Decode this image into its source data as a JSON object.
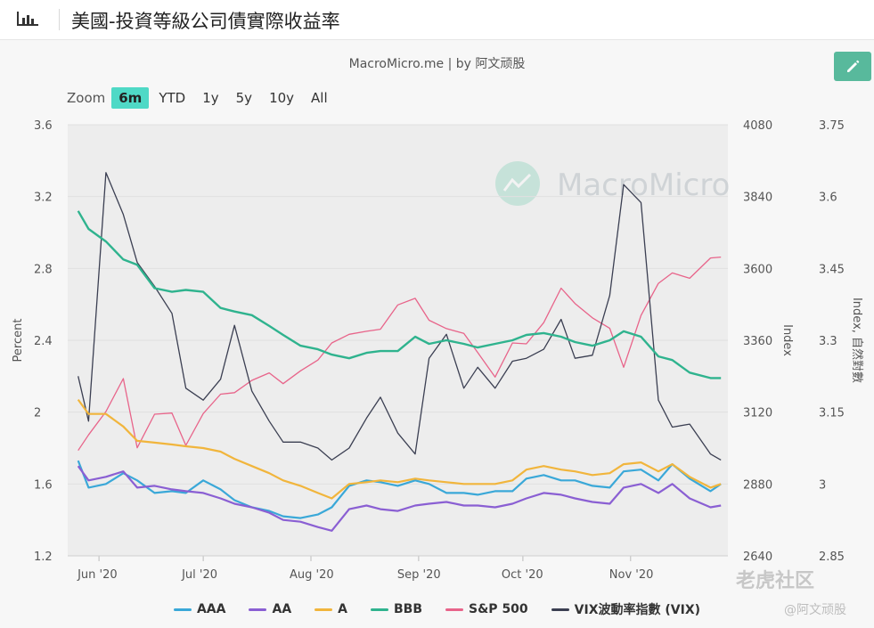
{
  "header": {
    "title": "美國-投資等級公司債實際收益率"
  },
  "credit": "MacroMicro.me | by 阿文顽股",
  "watermark": "MacroMicro",
  "corner_watermark": "老虎社区",
  "corner_watermark2": "@阿文顽股",
  "zoom": {
    "label": "Zoom",
    "options": [
      "6m",
      "YTD",
      "1y",
      "5y",
      "10y",
      "All"
    ],
    "active": "6m"
  },
  "colors": {
    "AAA": "#3aa8d8",
    "AA": "#8a5fd3",
    "A": "#f1b53c",
    "BBB": "#2fb38e",
    "SP500": "#e8648a",
    "VIX": "#3b3f52",
    "plot_bg": "#ededed",
    "edit_button": "#58b99c"
  },
  "chart_data": {
    "type": "line",
    "dates": [
      "2020-05-26",
      "2020-05-29",
      "2020-06-03",
      "2020-06-08",
      "2020-06-12",
      "2020-06-17",
      "2020-06-22",
      "2020-06-26",
      "2020-07-01",
      "2020-07-06",
      "2020-07-10",
      "2020-07-15",
      "2020-07-20",
      "2020-07-24",
      "2020-07-29",
      "2020-08-03",
      "2020-08-07",
      "2020-08-12",
      "2020-08-17",
      "2020-08-21",
      "2020-08-26",
      "2020-08-31",
      "2020-09-04",
      "2020-09-09",
      "2020-09-14",
      "2020-09-18",
      "2020-09-23",
      "2020-09-28",
      "2020-10-02",
      "2020-10-07",
      "2020-10-12",
      "2020-10-16",
      "2020-10-21",
      "2020-10-26",
      "2020-10-30",
      "2020-11-04",
      "2020-11-09",
      "2020-11-13",
      "2020-11-18",
      "2020-11-24",
      "2020-11-27"
    ],
    "x_tick_labels": [
      "Jun '20",
      "Jul '20",
      "Aug '20",
      "Sep '20",
      "Oct '20",
      "Nov '20"
    ],
    "x_tick_dates": [
      "2020-06-01",
      "2020-07-01",
      "2020-08-01",
      "2020-09-01",
      "2020-10-01",
      "2020-11-01"
    ],
    "y_left": {
      "label": "Percent",
      "range": [
        1.2,
        3.6
      ],
      "ticks": [
        "1.2",
        "1.6",
        "2",
        "2.4",
        "2.8",
        "3.2",
        "3.6"
      ]
    },
    "y_right_1": {
      "label": "Index",
      "range": [
        2640,
        4080
      ],
      "ticks": [
        "2640",
        "2880",
        "3120",
        "3360",
        "3600",
        "3840",
        "4080"
      ]
    },
    "y_right_2": {
      "label": "Index, 自然對數",
      "range": [
        2.85,
        3.75
      ],
      "ticks": [
        "2.85",
        "3",
        "3.15",
        "3.3",
        "3.45",
        "3.6",
        "3.75"
      ]
    },
    "series": [
      {
        "name": "AAA",
        "axis": "left",
        "values": [
          1.73,
          1.58,
          1.6,
          1.66,
          1.62,
          1.55,
          1.56,
          1.55,
          1.62,
          1.57,
          1.51,
          1.47,
          1.45,
          1.42,
          1.41,
          1.43,
          1.47,
          1.59,
          1.62,
          1.61,
          1.59,
          1.62,
          1.6,
          1.55,
          1.55,
          1.54,
          1.56,
          1.56,
          1.63,
          1.65,
          1.62,
          1.62,
          1.59,
          1.58,
          1.67,
          1.68,
          1.62,
          1.71,
          1.63,
          1.56,
          1.6
        ]
      },
      {
        "name": "AA",
        "axis": "left",
        "values": [
          1.7,
          1.62,
          1.64,
          1.67,
          1.58,
          1.59,
          1.57,
          1.56,
          1.55,
          1.52,
          1.49,
          1.47,
          1.44,
          1.4,
          1.39,
          1.36,
          1.34,
          1.46,
          1.48,
          1.46,
          1.45,
          1.48,
          1.49,
          1.5,
          1.48,
          1.48,
          1.47,
          1.49,
          1.52,
          1.55,
          1.54,
          1.52,
          1.5,
          1.49,
          1.58,
          1.6,
          1.55,
          1.6,
          1.52,
          1.47,
          1.48
        ]
      },
      {
        "name": "A",
        "axis": "left",
        "values": [
          2.07,
          1.99,
          1.99,
          1.92,
          1.84,
          1.83,
          1.82,
          1.81,
          1.8,
          1.78,
          1.74,
          1.7,
          1.66,
          1.62,
          1.59,
          1.55,
          1.52,
          1.6,
          1.61,
          1.62,
          1.61,
          1.63,
          1.62,
          1.61,
          1.6,
          1.6,
          1.6,
          1.62,
          1.68,
          1.7,
          1.68,
          1.67,
          1.65,
          1.66,
          1.71,
          1.72,
          1.67,
          1.71,
          1.64,
          1.58,
          1.6
        ]
      },
      {
        "name": "BBB",
        "axis": "left",
        "values": [
          3.12,
          3.02,
          2.95,
          2.85,
          2.82,
          2.69,
          2.67,
          2.68,
          2.67,
          2.58,
          2.56,
          2.54,
          2.48,
          2.43,
          2.37,
          2.35,
          2.32,
          2.3,
          2.33,
          2.34,
          2.34,
          2.42,
          2.38,
          2.4,
          2.38,
          2.36,
          2.38,
          2.4,
          2.43,
          2.44,
          2.42,
          2.39,
          2.37,
          2.4,
          2.45,
          2.42,
          2.31,
          2.29,
          2.22,
          2.19,
          2.19
        ]
      },
      {
        "name": "S&P 500",
        "axis": "right_1",
        "values": [
          2992,
          3044,
          3122,
          3232,
          3001,
          3113,
          3117,
          3009,
          3115,
          3180,
          3185,
          3226,
          3251,
          3215,
          3258,
          3294,
          3351,
          3380,
          3390,
          3397,
          3478,
          3500,
          3427,
          3399,
          3383,
          3319,
          3237,
          3351,
          3348,
          3419,
          3534,
          3483,
          3435,
          3400,
          3270,
          3443,
          3550,
          3585,
          3567,
          3635,
          3638
        ]
      },
      {
        "name": "VIX波動率指數 (VIX)",
        "axis": "right_1",
        "values": [
          3240,
          3090,
          3920,
          3780,
          3620,
          3540,
          3450,
          3200,
          3160,
          3230,
          3410,
          3190,
          3090,
          3020,
          3020,
          3000,
          2960,
          3000,
          3100,
          3170,
          3050,
          2980,
          3300,
          3380,
          3200,
          3270,
          3200,
          3290,
          3300,
          3330,
          3430,
          3300,
          3310,
          3510,
          3880,
          3820,
          3160,
          3070,
          3080,
          2980,
          2960
        ]
      }
    ]
  },
  "legend": {
    "items": [
      "AAA",
      "AA",
      "A",
      "BBB",
      "S&P 500",
      "VIX波動率指數 (VIX)"
    ]
  }
}
